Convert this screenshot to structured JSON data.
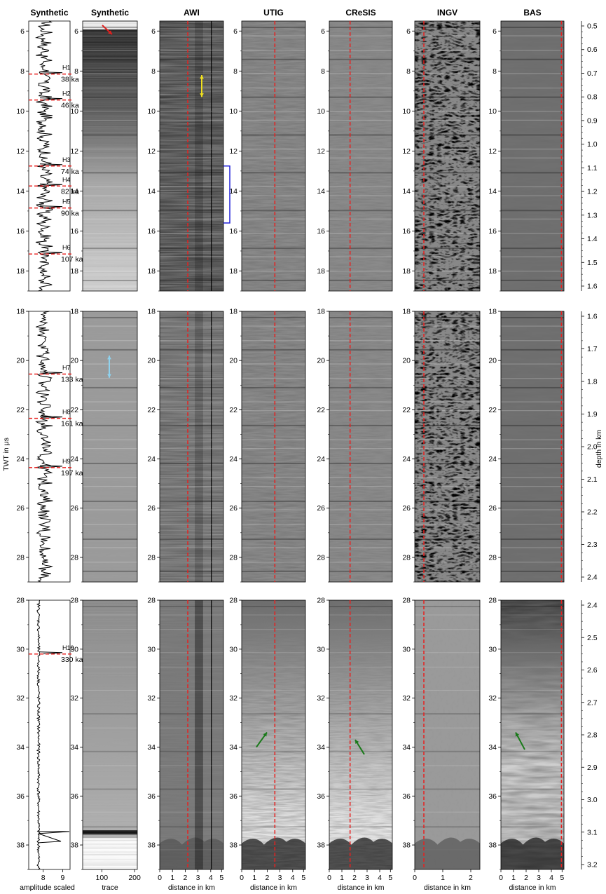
{
  "columns": [
    {
      "key": "synthetic_amp",
      "title": "Synthetic",
      "xlabel": "amplitude scaled",
      "xticks": [
        "8",
        "9"
      ]
    },
    {
      "key": "synthetic_trace",
      "title": "Synthetic",
      "xlabel": "trace",
      "xticks": [
        "100",
        "200"
      ]
    },
    {
      "key": "awi",
      "title": "AWI",
      "xlabel": "distance in km",
      "xticks": [
        "0",
        "1",
        "2",
        "3",
        "4",
        "5"
      ]
    },
    {
      "key": "utig",
      "title": "UTIG",
      "xlabel": "distance in km",
      "xticks": [
        "0",
        "1",
        "2",
        "3",
        "4",
        "5"
      ]
    },
    {
      "key": "cresis",
      "title": "CReSIS",
      "xlabel": "distance in km",
      "xticks": [
        "0",
        "1",
        "2",
        "3",
        "4",
        "5"
      ]
    },
    {
      "key": "ingv",
      "title": "INGV",
      "xlabel": "distance in km",
      "xticks": [
        "0",
        "1",
        "2"
      ]
    },
    {
      "key": "bas",
      "title": "BAS",
      "xlabel": "distance in km",
      "xticks": [
        "0",
        "1",
        "2",
        "3",
        "4",
        "5"
      ]
    }
  ],
  "y_label": "TWT in μs",
  "depth_label": "depth in km",
  "rows": [
    {
      "range": [
        5.5,
        19
      ],
      "yticks": [
        "6",
        "8",
        "10",
        "12",
        "14",
        "16",
        "18"
      ],
      "depth_ticks": [
        "0.5",
        "0.6",
        "0.7",
        "0.8",
        "0.9",
        "1.0",
        "1.1",
        "1.2",
        "1.3",
        "1.4",
        "1.5",
        "1.6"
      ]
    },
    {
      "range": [
        18,
        29
      ],
      "yticks": [
        "18",
        "20",
        "22",
        "24",
        "26",
        "28"
      ],
      "depth_ticks": [
        "1.6",
        "1.7",
        "1.8",
        "1.9",
        "2.0",
        "2.1",
        "2.2",
        "2.3",
        "2.4"
      ]
    },
    {
      "range": [
        28,
        39
      ],
      "yticks": [
        "28",
        "30",
        "32",
        "34",
        "36",
        "38"
      ],
      "depth_ticks": [
        "2.4",
        "2.5",
        "2.6",
        "2.7",
        "2.8",
        "2.9",
        "3.0",
        "3.1",
        "3.2"
      ]
    }
  ],
  "horizons": [
    {
      "id": "H1",
      "age": "38 ka",
      "twt": 8.15
    },
    {
      "id": "H2",
      "age": "46 ka",
      "twt": 9.45
    },
    {
      "id": "H3",
      "age": "74 ka",
      "twt": 12.75
    },
    {
      "id": "H4",
      "age": "82 ka",
      "twt": 13.75
    },
    {
      "id": "H5",
      "age": "90 ka",
      "twt": 14.85
    },
    {
      "id": "H6",
      "age": "107 ka",
      "twt": 17.15
    },
    {
      "id": "H7",
      "age": "133 ka",
      "twt": 20.55
    },
    {
      "id": "H8",
      "age": "161 ka",
      "twt": 22.35
    },
    {
      "id": "H9",
      "age": "197 ka",
      "twt": 24.35
    },
    {
      "id": "H10",
      "age": "330 ka",
      "twt": 30.2
    }
  ],
  "colors": {
    "horizon_dashed": "#e8201f",
    "arrow_yellow": "#f0e020",
    "arrow_cyan": "#8fd2ee",
    "arrow_green": "#1a7a1a",
    "arrow_red": "#e0201e",
    "bracket_blue": "#2020d8"
  }
}
